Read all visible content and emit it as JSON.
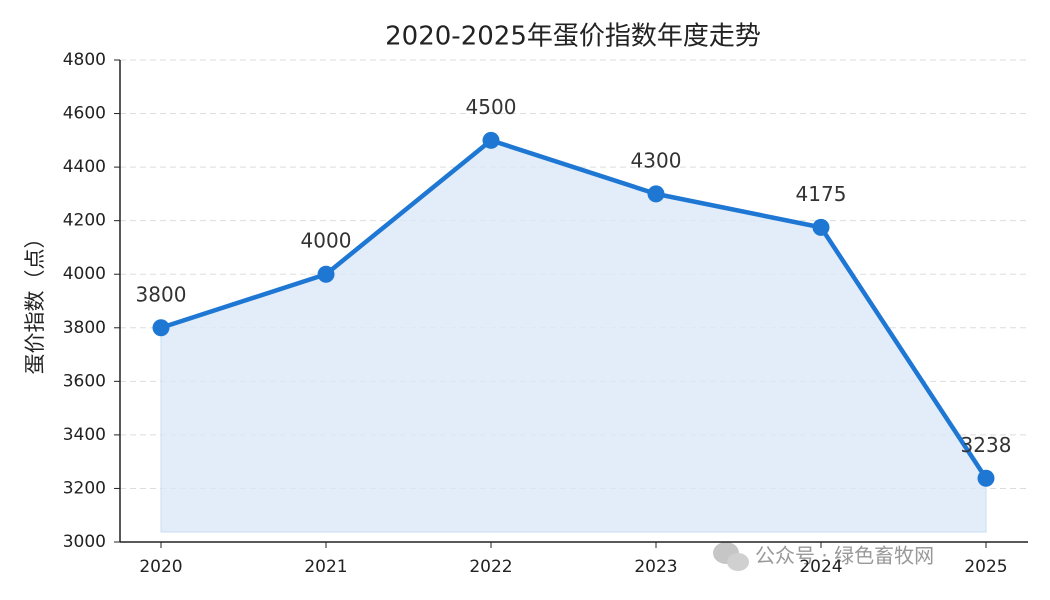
{
  "chart_data": {
    "type": "line",
    "title": "2020-2025年蛋价指数年度走势",
    "y_label": "蛋价指数（点）",
    "categories": [
      "2020",
      "2021",
      "2022",
      "2023",
      "2024",
      "2025"
    ],
    "series": [
      {
        "name": "蛋价指数",
        "color": "#1f77d4",
        "values": [
          3800,
          4000,
          4500,
          4300,
          4175,
          3238
        ]
      }
    ],
    "ylim": [
      3000,
      4800
    ],
    "yticks": [
      3000,
      3200,
      3400,
      3600,
      3800,
      4000,
      4200,
      4400,
      4600,
      4800
    ],
    "grid": true,
    "area_fill": "#dce9f7",
    "watermark": "公众号 · 绿色畜牧网"
  }
}
